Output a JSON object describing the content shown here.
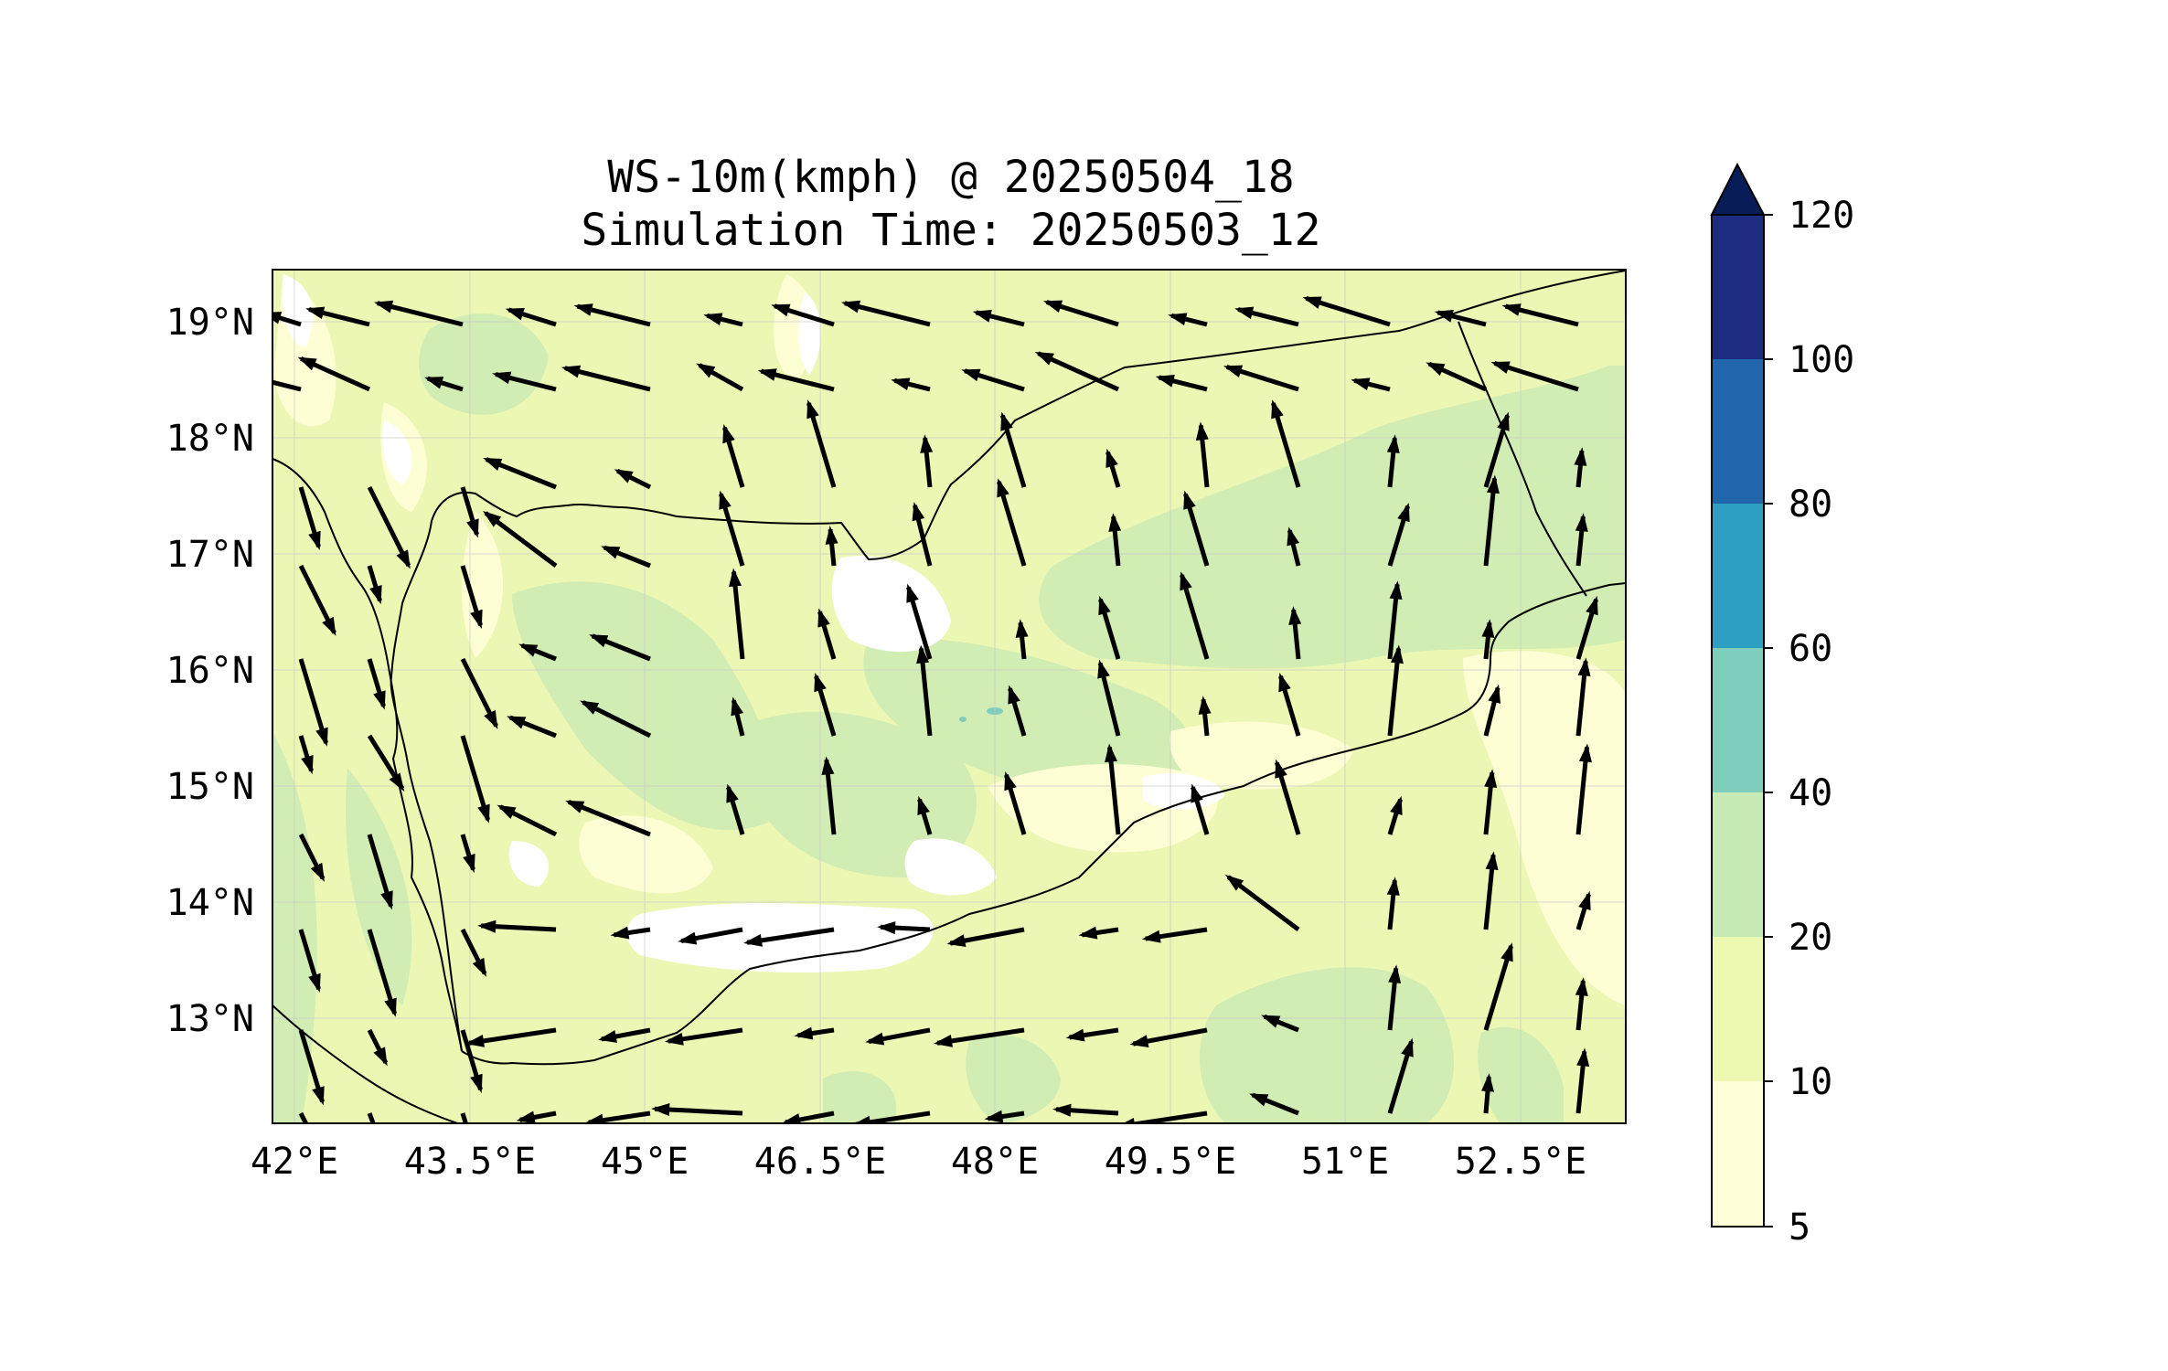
{
  "title": {
    "line1": "WS-10m(kmph) @ 20250504_18",
    "line2": "Simulation Time: 20250503_12"
  },
  "map": {
    "lon_range": [
      41.8,
      53.6
    ],
    "lat_range": [
      12.1,
      19.45
    ],
    "lon_ticks": [
      {
        "value": 42.0,
        "label": "42°E"
      },
      {
        "value": 43.5,
        "label": "43.5°E"
      },
      {
        "value": 45.0,
        "label": "45°E"
      },
      {
        "value": 46.5,
        "label": "46.5°E"
      },
      {
        "value": 48.0,
        "label": "48°E"
      },
      {
        "value": 49.5,
        "label": "49.5°E"
      },
      {
        "value": 51.0,
        "label": "51°E"
      },
      {
        "value": 52.5,
        "label": "52.5°E"
      }
    ],
    "lat_ticks": [
      {
        "value": 19,
        "label": "19°N"
      },
      {
        "value": 18,
        "label": "18°N"
      },
      {
        "value": 17,
        "label": "17°N"
      },
      {
        "value": 16,
        "label": "16°N"
      },
      {
        "value": 15,
        "label": "15°N"
      },
      {
        "value": 14,
        "label": "14°N"
      },
      {
        "value": 13,
        "label": "13°N"
      }
    ],
    "grid": true,
    "colors": {
      "land_base": "#ecf7b4",
      "band_lt10": "#fdfed4",
      "band_20_40": "#d1edb4",
      "band_white": "#ffffff",
      "coast": "#000000",
      "arrow": "#000000"
    }
  },
  "colorbar": {
    "extend": "max",
    "levels": [
      {
        "value": "5",
        "from": 5,
        "to": 10,
        "color": "#ffffd9"
      },
      {
        "value": "10",
        "from": 10,
        "to": 20,
        "color": "#edf8b1"
      },
      {
        "value": "20",
        "from": 20,
        "to": 40,
        "color": "#c7e9b4"
      },
      {
        "value": "40",
        "from": 40,
        "to": 60,
        "color": "#7fcdbb"
      },
      {
        "value": "60",
        "from": 60,
        "to": 80,
        "color": "#2c9fc2"
      },
      {
        "value": "80",
        "from": 80,
        "to": 100,
        "color": "#2166ac"
      },
      {
        "value": "100",
        "from": 100,
        "to": 120,
        "color": "#1d2c80"
      },
      {
        "value": "120",
        "from": 120,
        "to": null,
        "color": "#081d58"
      }
    ]
  }
}
